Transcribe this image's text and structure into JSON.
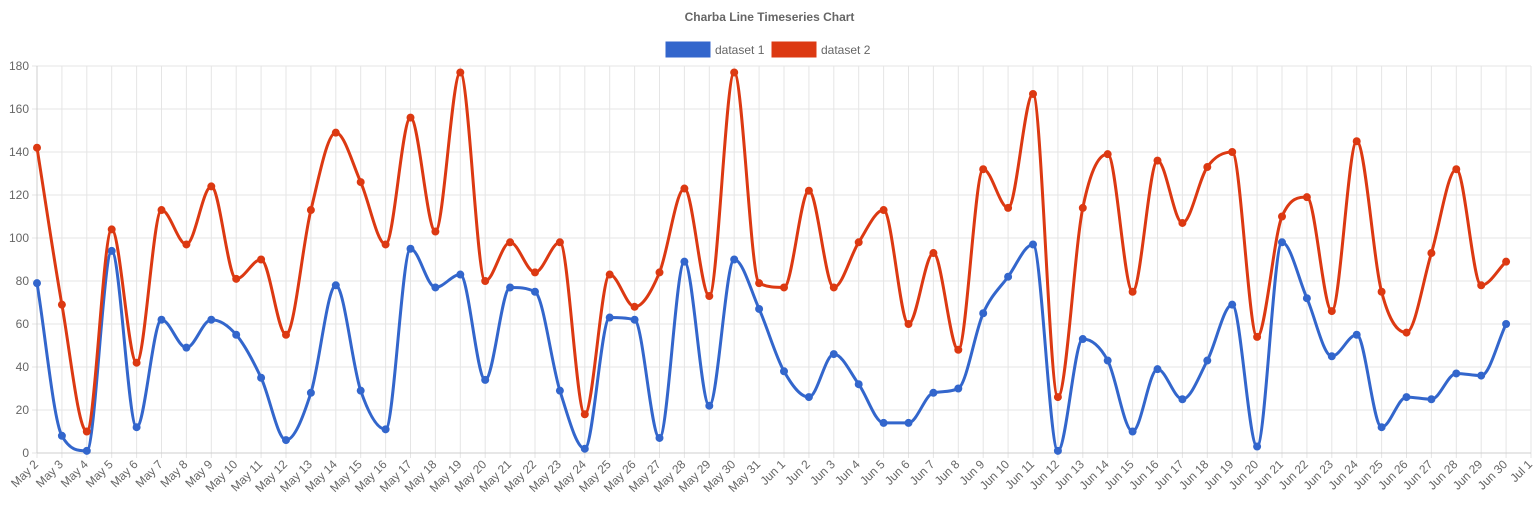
{
  "chart_data": {
    "type": "line",
    "title": "Charba Line Timeseries Chart",
    "xlabel": "",
    "ylabel": "",
    "legend_position": "top",
    "grid": true,
    "ylim": [
      0,
      180
    ],
    "y_ticks": [
      "0",
      "20",
      "40",
      "60",
      "80",
      "100",
      "120",
      "140",
      "160",
      "180"
    ],
    "x_ticks": [
      "May 2",
      "May 3",
      "May 4",
      "May 5",
      "May 6",
      "May 7",
      "May 8",
      "May 9",
      "May 10",
      "May 11",
      "May 12",
      "May 13",
      "May 14",
      "May 15",
      "May 16",
      "May 17",
      "May 18",
      "May 19",
      "May 20",
      "May 21",
      "May 22",
      "May 23",
      "May 24",
      "May 25",
      "May 26",
      "May 27",
      "May 28",
      "May 29",
      "May 30",
      "May 31",
      "Jun 1",
      "Jun 2",
      "Jun 3",
      "Jun 4",
      "Jun 5",
      "Jun 6",
      "Jun 7",
      "Jun 8",
      "Jun 9",
      "Jun 10",
      "Jun 11",
      "Jun 12",
      "Jun 13",
      "Jun 14",
      "Jun 15",
      "Jun 16",
      "Jun 17",
      "Jun 18",
      "Jun 19",
      "Jun 20",
      "Jun 21",
      "Jun 22",
      "Jun 23",
      "Jun 24",
      "Jun 25",
      "Jun 26",
      "Jun 27",
      "Jun 28",
      "Jun 29",
      "Jun 30",
      "Jul 1"
    ],
    "x": [
      "May 2",
      "May 3",
      "May 4",
      "May 5",
      "May 6",
      "May 7",
      "May 8",
      "May 9",
      "May 10",
      "May 11",
      "May 12",
      "May 13",
      "May 14",
      "May 15",
      "May 16",
      "May 17",
      "May 18",
      "May 19",
      "May 20",
      "May 21",
      "May 22",
      "May 23",
      "May 24",
      "May 25",
      "May 26",
      "May 27",
      "May 28",
      "May 29",
      "May 30",
      "May 31",
      "Jun 1",
      "Jun 2",
      "Jun 3",
      "Jun 4",
      "Jun 5",
      "Jun 6",
      "Jun 7",
      "Jun 8",
      "Jun 9",
      "Jun 10",
      "Jun 11",
      "Jun 12",
      "Jun 13",
      "Jun 14",
      "Jun 15",
      "Jun 16",
      "Jun 17",
      "Jun 18",
      "Jun 19",
      "Jun 20",
      "Jun 21",
      "Jun 22",
      "Jun 23",
      "Jun 24",
      "Jun 25",
      "Jun 26",
      "Jun 27",
      "Jun 28",
      "Jun 29",
      "Jun 30"
    ],
    "series": [
      {
        "name": "dataset 1",
        "color": "#3366cc",
        "values": [
          79,
          8,
          1,
          94,
          12,
          62,
          49,
          62,
          55,
          35,
          6,
          28,
          78,
          29,
          11,
          95,
          77,
          83,
          34,
          77,
          75,
          29,
          2,
          63,
          62,
          7,
          89,
          22,
          90,
          67,
          38,
          26,
          46,
          32,
          14,
          14,
          28,
          30,
          65,
          82,
          97,
          1,
          53,
          43,
          10,
          39,
          25,
          43,
          69,
          3,
          98,
          72,
          45,
          55,
          12,
          26,
          25,
          37,
          36,
          60
        ]
      },
      {
        "name": "dataset 2",
        "color": "#dc3912",
        "values": [
          142,
          69,
          10,
          104,
          42,
          113,
          97,
          124,
          81,
          90,
          55,
          113,
          149,
          126,
          97,
          156,
          103,
          177,
          80,
          98,
          84,
          98,
          18,
          83,
          68,
          84,
          123,
          73,
          177,
          79,
          77,
          122,
          77,
          98,
          113,
          60,
          93,
          48,
          132,
          114,
          167,
          26,
          114,
          139,
          75,
          136,
          107,
          133,
          140,
          54,
          110,
          119,
          66,
          145,
          75,
          56,
          93,
          132,
          78,
          89
        ]
      }
    ]
  }
}
